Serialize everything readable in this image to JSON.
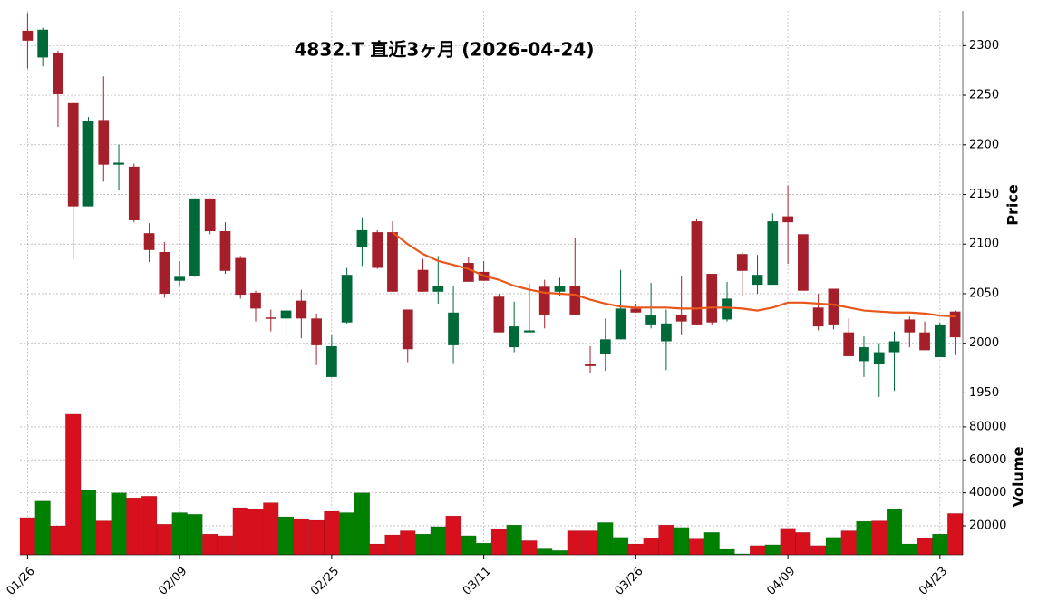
{
  "chart_data": [
    {
      "type": "candlestick",
      "title": "4832.T  直近3ヶ月  (2026-04-24)",
      "ylabel": "Price",
      "categories": [
        "01/26",
        null,
        null,
        null,
        null,
        null,
        null,
        null,
        null,
        null,
        "02/09",
        null,
        null,
        null,
        null,
        null,
        null,
        null,
        null,
        null,
        "02/25",
        null,
        null,
        null,
        null,
        null,
        null,
        null,
        null,
        null,
        "03/11",
        null,
        null,
        null,
        null,
        null,
        null,
        null,
        null,
        null,
        "03/26",
        null,
        null,
        null,
        null,
        null,
        null,
        null,
        null,
        null,
        "04/09",
        null,
        null,
        null,
        null,
        null,
        null,
        null,
        null,
        null,
        "04/23",
        null
      ],
      "open": [
        2315,
        2288,
        2293,
        2242,
        2138,
        2225,
        2180,
        2178,
        2111,
        2092,
        2063,
        2068,
        2146,
        2113,
        2086,
        2051,
        2026,
        2025,
        2043,
        2025,
        1966,
        2021,
        2097,
        2112,
        2112,
        2034,
        2074,
        2052,
        1998,
        2081,
        2072,
        2047,
        1996,
        2011,
        2057,
        2052,
        2058,
        1979,
        1989,
        2004,
        2035,
        2019,
        2002,
        2029,
        2123,
        2070,
        2024,
        2090,
        2059,
        2059,
        2128,
        2110,
        2036,
        2055,
        2011,
        1982,
        1979,
        1991,
        2024,
        2011,
        1986,
        2032
      ],
      "high": [
        2333,
        2318,
        2295,
        2242,
        2228,
        2269,
        2200,
        2181,
        2121,
        2102,
        2083,
        2146,
        2146,
        2122,
        2088,
        2053,
        2034,
        2034,
        2054,
        2030,
        2008,
        2076,
        2127,
        2114,
        2123,
        2034,
        2085,
        2088,
        2058,
        2087,
        2083,
        2050,
        2042,
        2060,
        2064,
        2066,
        2106,
        1997,
        2025,
        2074,
        2040,
        2061,
        2034,
        2068,
        2125,
        2070,
        2062,
        2092,
        2089,
        2131,
        2159,
        2110,
        2050,
        2055,
        2025,
        2007,
        2000,
        2012,
        2027,
        2022,
        2021,
        2033
      ],
      "low": [
        2277,
        2279,
        2218,
        2085,
        2138,
        2163,
        2154,
        2122,
        2082,
        2046,
        2058,
        2067,
        2110,
        2070,
        2045,
        2022,
        2012,
        1994,
        2005,
        1978,
        1966,
        2020,
        2078,
        2075,
        2052,
        1981,
        2052,
        2040,
        1980,
        2062,
        2063,
        2011,
        1991,
        2011,
        2015,
        2048,
        2029,
        1970,
        1972,
        2004,
        2031,
        2015,
        1973,
        2009,
        2019,
        2019,
        2022,
        2048,
        2050,
        2059,
        2080,
        2053,
        2013,
        2014,
        1987,
        1966,
        1946,
        1952,
        1996,
        1993,
        1986,
        1988
      ],
      "close": [
        2305,
        2316,
        2251,
        2138,
        2224,
        2180,
        2182,
        2124,
        2094,
        2050,
        2067,
        2146,
        2113,
        2073,
        2049,
        2035,
        2025,
        2033,
        2025,
        1998,
        1997,
        2069,
        2114,
        2076,
        2052,
        1994,
        2052,
        2058,
        2031,
        2062,
        2063,
        2011,
        2017,
        2013,
        2029,
        2058,
        2029,
        1977,
        2004,
        2035,
        2031,
        2028,
        2020,
        2022,
        2019,
        2021,
        2045,
        2073,
        2069,
        2123,
        2122,
        2053,
        2017,
        2019,
        1987,
        1996,
        1991,
        2002,
        2011,
        1993,
        2019,
        2006
      ],
      "ma": {
        "color": "#e8571a",
        "values": [
          null,
          null,
          null,
          null,
          null,
          null,
          null,
          null,
          null,
          null,
          null,
          null,
          null,
          null,
          null,
          null,
          null,
          null,
          null,
          null,
          null,
          null,
          null,
          null,
          2112,
          2100,
          2090,
          2083,
          2079,
          2075,
          2068,
          2064,
          2058,
          2054,
          2051,
          2050,
          2049,
          2044,
          2040,
          2037,
          2036,
          2036,
          2036,
          2035,
          2035,
          2036,
          2036,
          2035,
          2033,
          2036,
          2041,
          2041,
          2040,
          2039,
          2036,
          2033,
          2032,
          2031,
          2031,
          2030,
          2028,
          2027
        ]
      },
      "up_color": "#00693a",
      "down_color": "#a51f2a",
      "ylim": [
        1944,
        2335
      ],
      "yticks": [
        1950,
        2000,
        2050,
        2100,
        2150,
        2200,
        2250,
        2300
      ],
      "grid": true
    },
    {
      "type": "bar",
      "ylabel": "Volume",
      "values": [
        25000,
        35000,
        20000,
        87700,
        41500,
        23000,
        40000,
        37000,
        38000,
        21000,
        28000,
        27000,
        15000,
        14000,
        31000,
        30000,
        34000,
        25500,
        24400,
        23300,
        28800,
        28000,
        40000,
        9000,
        14500,
        17000,
        15000,
        19500,
        26000,
        14000,
        9500,
        18000,
        20500,
        11000,
        6000,
        5000,
        17000,
        17000,
        22000,
        13000,
        9000,
        12500,
        20500,
        19000,
        12000,
        16000,
        5700,
        3000,
        8000,
        8500,
        18500,
        16000,
        8000,
        13000,
        17000,
        22700,
        23000,
        30000,
        9000,
        12500,
        15000,
        27500
      ],
      "up_color": "#008000",
      "down_color": "#d6101d",
      "ylim": [
        2400,
        97000
      ],
      "yticks": [
        20000,
        40000,
        60000,
        80000
      ],
      "grid": true
    }
  ]
}
